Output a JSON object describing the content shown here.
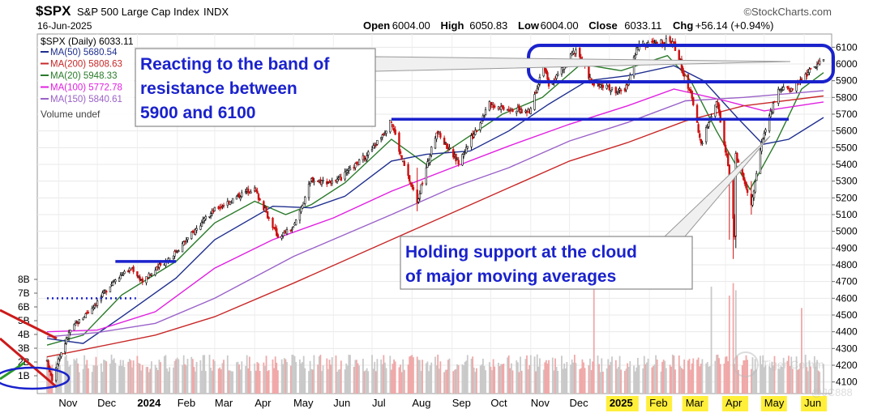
{
  "header": {
    "symbol": "$SPX",
    "name": "S&P 500 Large Cap Index",
    "exchange": "INDX",
    "date": "16-Jun-2025",
    "brand": "©StockCharts.com",
    "ohlc": [
      {
        "label": "Open",
        "value": "6004.00"
      },
      {
        "label": "High",
        "value": "6050.83"
      },
      {
        "label": "Low",
        "value": "6004.00"
      },
      {
        "label": "Close",
        "value": "6033.11"
      },
      {
        "label": "Chg",
        "value": "+56.14 (+0.94%)"
      }
    ]
  },
  "legend": {
    "price": "$SPX (Daily) 6033.11",
    "volume": "Volume undef",
    "items": [
      {
        "label": "MA(50) 5680.54",
        "color": "#1f2f8f"
      },
      {
        "label": "MA(200) 5808.63",
        "color": "#c82828"
      },
      {
        "label": "MA(20) 5948.33",
        "color": "#2a7a2a"
      },
      {
        "label": "MA(100) 5772.78",
        "color": "#e020e0"
      },
      {
        "label": "MA(150) 5840.61",
        "color": "#9a62c8"
      }
    ]
  },
  "annotations": {
    "resistance_lines": [
      "Reacting to the band of",
      "resistance between",
      "5900 and 6100"
    ],
    "support_lines": [
      "Holding support at the cloud",
      "of major moving averages"
    ]
  },
  "volume_axis_labels": [
    "8B",
    "7B",
    "6B",
    "5B",
    "4B",
    "3B",
    "2B",
    "1B"
  ],
  "watermark": {
    "text1": "Tiger Comm",
    "text2": "@JC888"
  },
  "chart_data": {
    "type": "candlestick",
    "title": "$SPX S&P 500 Large Cap Index INDX",
    "ylim": [
      4050,
      6150
    ],
    "y_ticks": [
      4100,
      4200,
      4300,
      4400,
      4500,
      4600,
      4700,
      4800,
      4900,
      5000,
      5100,
      5200,
      5300,
      5400,
      5500,
      5600,
      5700,
      5800,
      5900,
      6000,
      6100
    ],
    "x_labels": [
      {
        "label": "Nov",
        "date": "2023-11-01"
      },
      {
        "label": "Dec",
        "date": "2023-12-01"
      },
      {
        "label": "2024",
        "date": "2024-01-01"
      },
      {
        "label": "Feb",
        "date": "2024-02-01"
      },
      {
        "label": "Mar",
        "date": "2024-03-01"
      },
      {
        "label": "Apr",
        "date": "2024-04-01"
      },
      {
        "label": "May",
        "date": "2024-05-01"
      },
      {
        "label": "Jun",
        "date": "2024-06-01"
      },
      {
        "label": "Jul",
        "date": "2024-07-01"
      },
      {
        "label": "Aug",
        "date": "2024-08-01"
      },
      {
        "label": "Sep",
        "date": "2024-09-01"
      },
      {
        "label": "Oct",
        "date": "2024-10-01"
      },
      {
        "label": "Nov",
        "date": "2024-11-01"
      },
      {
        "label": "Dec",
        "date": "2024-12-01"
      },
      {
        "label": "2025",
        "date": "2025-01-01",
        "highlight": true
      },
      {
        "label": "Feb",
        "date": "2025-02-01",
        "highlight": true
      },
      {
        "label": "Mar",
        "date": "2025-03-01",
        "highlight": true
      },
      {
        "label": "Apr",
        "date": "2025-04-01",
        "highlight": true
      },
      {
        "label": "May",
        "date": "2025-05-01",
        "highlight": true
      },
      {
        "label": "Jun",
        "date": "2025-06-01",
        "highlight": true
      }
    ],
    "x_range": [
      "2023-10-23",
      "2025-06-16"
    ],
    "close_path": [
      [
        "2023-10-23",
        4220
      ],
      [
        "2023-10-27",
        4120
      ],
      [
        "2023-11-01",
        4240
      ],
      [
        "2023-11-10",
        4410
      ],
      [
        "2023-11-30",
        4570
      ],
      [
        "2023-12-15",
        4720
      ],
      [
        "2023-12-28",
        4780
      ],
      [
        "2024-01-05",
        4700
      ],
      [
        "2024-01-31",
        4880
      ],
      [
        "2024-02-15",
        5010
      ],
      [
        "2024-03-01",
        5130
      ],
      [
        "2024-03-28",
        5250
      ],
      [
        "2024-04-01",
        5250
      ],
      [
        "2024-04-19",
        4970
      ],
      [
        "2024-05-01",
        5020
      ],
      [
        "2024-05-15",
        5310
      ],
      [
        "2024-06-03",
        5290
      ],
      [
        "2024-06-30",
        5480
      ],
      [
        "2024-07-16",
        5660
      ],
      [
        "2024-07-24",
        5430
      ],
      [
        "2024-08-05",
        5180
      ],
      [
        "2024-08-20",
        5600
      ],
      [
        "2024-09-06",
        5410
      ],
      [
        "2024-09-30",
        5760
      ],
      [
        "2024-10-31",
        5710
      ],
      [
        "2024-11-11",
        6000
      ],
      [
        "2024-11-15",
        5860
      ],
      [
        "2024-12-06",
        6090
      ],
      [
        "2024-12-19",
        5880
      ],
      [
        "2025-01-13",
        5830
      ],
      [
        "2025-01-23",
        6110
      ],
      [
        "2025-02-19",
        6140
      ],
      [
        "2025-03-07",
        5770
      ],
      [
        "2025-03-13",
        5520
      ],
      [
        "2025-03-25",
        5780
      ],
      [
        "2025-04-03",
        5400
      ],
      [
        "2025-04-08",
        4980
      ],
      [
        "2025-04-09",
        5450
      ],
      [
        "2025-04-21",
        5160
      ],
      [
        "2025-04-30",
        5570
      ],
      [
        "2025-05-12",
        5840
      ],
      [
        "2025-05-21",
        5850
      ],
      [
        "2025-06-16",
        6033
      ]
    ],
    "major_shakes": [
      {
        "date": "2024-08-05",
        "low": 5120,
        "high": 5380
      },
      {
        "date": "2025-04-04",
        "low": 4950,
        "high": 5400
      },
      {
        "date": "2025-04-07",
        "low": 4835,
        "high": 5250
      },
      {
        "date": "2025-04-09",
        "low": 4900,
        "high": 5480
      },
      {
        "date": "2025-04-21",
        "low": 5100,
        "high": 5300
      }
    ],
    "ma_series": [
      {
        "key": "MA(20)",
        "color": "#2a7a2a",
        "points": [
          [
            "2023-10-23",
            4320
          ],
          [
            "2023-11-20",
            4380
          ],
          [
            "2023-12-20",
            4620
          ],
          [
            "2024-01-31",
            4820
          ],
          [
            "2024-03-01",
            5050
          ],
          [
            "2024-04-01",
            5180
          ],
          [
            "2024-04-25",
            5100
          ],
          [
            "2024-05-15",
            5160
          ],
          [
            "2024-06-10",
            5290
          ],
          [
            "2024-07-16",
            5550
          ],
          [
            "2024-08-12",
            5400
          ],
          [
            "2024-09-05",
            5520
          ],
          [
            "2024-10-10",
            5700
          ],
          [
            "2024-11-10",
            5800
          ],
          [
            "2024-12-10",
            6000
          ],
          [
            "2025-01-10",
            5960
          ],
          [
            "2025-02-15",
            6050
          ],
          [
            "2025-03-05",
            5900
          ],
          [
            "2025-03-25",
            5600
          ],
          [
            "2025-04-20",
            5250
          ],
          [
            "2025-05-10",
            5530
          ],
          [
            "2025-05-30",
            5850
          ],
          [
            "2025-06-16",
            5948
          ]
        ]
      },
      {
        "key": "MA(50)",
        "color": "#1f2f8f",
        "points": [
          [
            "2023-10-23",
            4360
          ],
          [
            "2023-11-20",
            4330
          ],
          [
            "2023-12-20",
            4490
          ],
          [
            "2024-01-31",
            4720
          ],
          [
            "2024-03-01",
            4950
          ],
          [
            "2024-04-15",
            5150
          ],
          [
            "2024-05-15",
            5140
          ],
          [
            "2024-06-10",
            5210
          ],
          [
            "2024-07-16",
            5420
          ],
          [
            "2024-08-12",
            5460
          ],
          [
            "2024-09-15",
            5480
          ],
          [
            "2024-10-15",
            5600
          ],
          [
            "2024-11-15",
            5760
          ],
          [
            "2024-12-15",
            5900
          ],
          [
            "2025-01-15",
            5930
          ],
          [
            "2025-02-20",
            5990
          ],
          [
            "2025-03-15",
            5900
          ],
          [
            "2025-04-10",
            5680
          ],
          [
            "2025-04-30",
            5520
          ],
          [
            "2025-05-20",
            5550
          ],
          [
            "2025-06-16",
            5680
          ]
        ]
      },
      {
        "key": "MA(100)",
        "color": "#e020e0",
        "points": [
          [
            "2023-10-23",
            4400
          ],
          [
            "2023-12-01",
            4410
          ],
          [
            "2024-01-15",
            4520
          ],
          [
            "2024-03-01",
            4780
          ],
          [
            "2024-04-15",
            4950
          ],
          [
            "2024-06-01",
            5080
          ],
          [
            "2024-07-16",
            5240
          ],
          [
            "2024-09-01",
            5380
          ],
          [
            "2024-10-15",
            5510
          ],
          [
            "2024-12-01",
            5640
          ],
          [
            "2025-01-15",
            5750
          ],
          [
            "2025-02-20",
            5850
          ],
          [
            "2025-04-01",
            5780
          ],
          [
            "2025-05-01",
            5720
          ],
          [
            "2025-06-16",
            5773
          ]
        ]
      },
      {
        "key": "MA(150)",
        "color": "#9a62c8",
        "points": [
          [
            "2023-10-23",
            4370
          ],
          [
            "2023-12-01",
            4395
          ],
          [
            "2024-01-15",
            4450
          ],
          [
            "2024-03-01",
            4600
          ],
          [
            "2024-05-01",
            4850
          ],
          [
            "2024-07-16",
            5100
          ],
          [
            "2024-09-01",
            5260
          ],
          [
            "2024-10-15",
            5380
          ],
          [
            "2024-12-01",
            5540
          ],
          [
            "2025-01-15",
            5650
          ],
          [
            "2025-03-01",
            5780
          ],
          [
            "2025-04-15",
            5800
          ],
          [
            "2025-06-16",
            5841
          ]
        ]
      },
      {
        "key": "MA(200)",
        "color": "#c82828",
        "points": [
          [
            "2023-10-23",
            4250
          ],
          [
            "2023-12-01",
            4310
          ],
          [
            "2024-01-15",
            4380
          ],
          [
            "2024-03-01",
            4490
          ],
          [
            "2024-05-01",
            4690
          ],
          [
            "2024-07-16",
            4950
          ],
          [
            "2024-09-01",
            5110
          ],
          [
            "2024-10-15",
            5260
          ],
          [
            "2024-12-01",
            5420
          ],
          [
            "2025-01-15",
            5530
          ],
          [
            "2025-03-01",
            5660
          ],
          [
            "2025-04-15",
            5750
          ],
          [
            "2025-06-16",
            5809
          ]
        ]
      }
    ],
    "volume_spikes": [
      {
        "date": "2024-12-20",
        "value": 0.6
      },
      {
        "date": "2025-03-21",
        "value": 0.6
      },
      {
        "date": "2025-04-04",
        "value": 0.55
      },
      {
        "date": "2025-04-07",
        "value": 0.62
      },
      {
        "date": "2025-04-09",
        "value": 0.58
      },
      {
        "date": "2025-05-30",
        "value": 0.48
      }
    ],
    "trendlines": [
      {
        "kind": "resistance",
        "color": "#1a22cc",
        "date": "2024-07-16",
        "end": "2025-05-20",
        "y": 5670
      },
      {
        "kind": "support",
        "color": "#1a22cc",
        "date": "2023-12-15",
        "end": "2024-01-31",
        "y": 4820
      },
      {
        "kind": "volume-level",
        "color": "#1a22cc",
        "date": "2023-10-23",
        "end": "2023-12-31",
        "y": 4600
      }
    ]
  }
}
